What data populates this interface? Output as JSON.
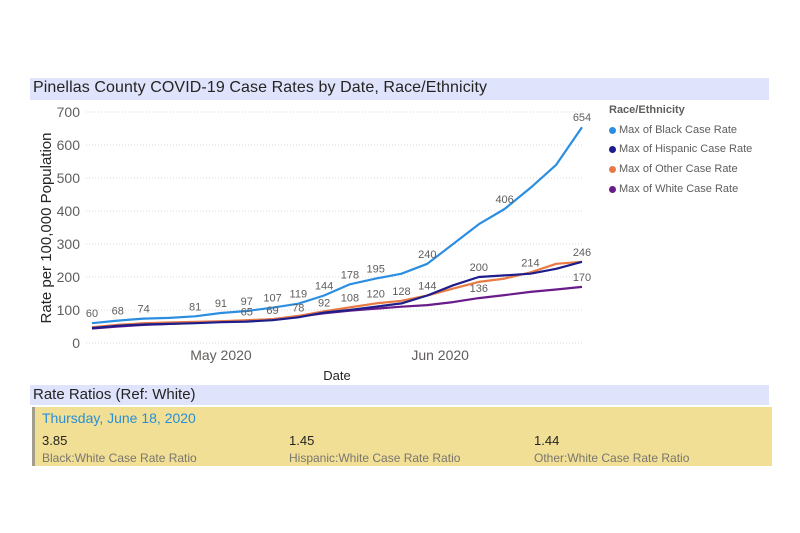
{
  "header": {
    "title": "Pinellas County COVID-19 Case Rates by Date, Race/Ethnicity"
  },
  "legend": {
    "title": "Race/Ethnicity",
    "items": [
      {
        "label": "Max of Black Case Rate",
        "color": "#2b8ee0"
      },
      {
        "label": "Max of Hispanic Case Rate",
        "color": "#1d1d8c"
      },
      {
        "label": "Max of Other Case Rate",
        "color": "#e87a45"
      },
      {
        "label": "Max of White Case Rate",
        "color": "#6a1b8a"
      }
    ]
  },
  "chart_data": {
    "type": "line",
    "title": "Pinellas County COVID-19 Case Rates by Date, Race/Ethnicity",
    "xlabel": "Date",
    "ylabel": "Rate per 100,000 Population",
    "ylim": [
      0,
      700
    ],
    "yticks": [
      0,
      100,
      200,
      300,
      400,
      500,
      600,
      700
    ],
    "x_tick_labels": [
      {
        "label": "May 2020",
        "x_index": 5
      },
      {
        "label": "Jun 2020",
        "x_index": 13.5
      }
    ],
    "grid": true,
    "legend_position": "right",
    "x": [
      "Apr 20",
      "Apr 23",
      "Apr 25",
      "Apr 28",
      "May 01",
      "May 03",
      "May 06",
      "May 09",
      "May 13",
      "May 17",
      "May 21",
      "May 24",
      "May 26",
      "May 29",
      "Jun 01",
      "Jun 05",
      "Jun 08",
      "Jun 11",
      "Jun 14",
      "Jun 18"
    ],
    "series": [
      {
        "name": "Max of Black Case Rate",
        "color": "#2b8ee0",
        "values": [
          60,
          68,
          74,
          76,
          81,
          91,
          97,
          107,
          119,
          144,
          178,
          195,
          210,
          240,
          300,
          360,
          406,
          470,
          540,
          654
        ],
        "labels": [
          60,
          68,
          74,
          null,
          81,
          91,
          97,
          107,
          119,
          144,
          178,
          195,
          null,
          240,
          null,
          null,
          406,
          null,
          null,
          654
        ]
      },
      {
        "name": "Max of Hispanic Case Rate",
        "color": "#1d1d8c",
        "values": [
          45,
          52,
          56,
          58,
          60,
          63,
          65,
          69,
          78,
          92,
          100,
          110,
          120,
          144,
          175,
          200,
          205,
          210,
          225,
          246
        ],
        "labels": [
          null,
          null,
          null,
          null,
          null,
          null,
          65,
          69,
          78,
          92,
          null,
          null,
          null,
          null,
          null,
          200,
          null,
          null,
          null,
          null
        ]
      },
      {
        "name": "Max of Other Case Rate",
        "color": "#e87a45",
        "values": [
          48,
          55,
          60,
          62,
          64,
          66,
          69,
          72,
          82,
          96,
          108,
          120,
          128,
          144,
          165,
          185,
          195,
          214,
          240,
          246
        ],
        "labels": [
          null,
          null,
          null,
          null,
          null,
          null,
          null,
          null,
          null,
          null,
          108,
          120,
          128,
          144,
          null,
          null,
          null,
          214,
          null,
          246
        ]
      },
      {
        "name": "Max of White Case Rate",
        "color": "#6a1b8a",
        "values": [
          44,
          50,
          55,
          58,
          62,
          65,
          68,
          72,
          80,
          90,
          98,
          104,
          110,
          115,
          124,
          136,
          145,
          155,
          162,
          170
        ],
        "labels": [
          null,
          null,
          null,
          null,
          null,
          null,
          null,
          null,
          null,
          null,
          null,
          null,
          null,
          null,
          null,
          136,
          null,
          null,
          null,
          170
        ]
      }
    ]
  },
  "ratios": {
    "title": "Rate Ratios (Ref: White)",
    "date": "Thursday, June 18, 2020",
    "items": [
      {
        "value": "3.85",
        "label": "Black:White Case Rate Ratio"
      },
      {
        "value": "1.45",
        "label": "Hispanic:White Case Rate Ratio"
      },
      {
        "value": "1.44",
        "label": "Other:White Case Rate Ratio"
      }
    ]
  }
}
